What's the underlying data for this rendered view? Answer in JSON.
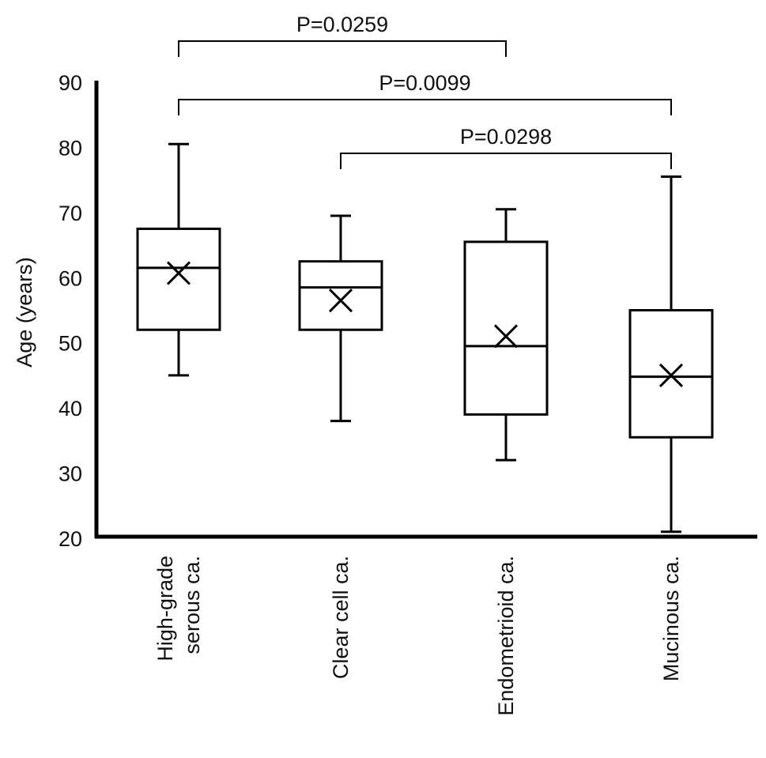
{
  "chart_data": {
    "type": "box",
    "ylabel": "Age (years)",
    "ylim": [
      20,
      90
    ],
    "yticks": [
      "20",
      "30",
      "40",
      "50",
      "60",
      "70",
      "80",
      "90"
    ],
    "grid": false,
    "categories": [
      [
        "High-grade",
        "serous ca."
      ],
      [
        "Clear cell ca."
      ],
      [
        "Endometrioid ca."
      ],
      [
        "Mucinous ca."
      ]
    ],
    "boxes": [
      {
        "min": 45,
        "q1": 52,
        "median": 61.5,
        "q3": 67.5,
        "max": 80.5,
        "mean": 60.7
      },
      {
        "min": 38,
        "q1": 52,
        "median": 58.5,
        "q3": 62.5,
        "max": 69.5,
        "mean": 56.5
      },
      {
        "min": 32,
        "q1": 39,
        "median": 49.5,
        "q3": 65.5,
        "max": 70.5,
        "mean": 51
      },
      {
        "min": 21,
        "q1": 35.5,
        "median": 44.8,
        "q3": 55,
        "max": 75.5,
        "mean": 45
      }
    ],
    "comparisons": [
      {
        "from": 0,
        "to": 2,
        "label": "P=0.0259"
      },
      {
        "from": 0,
        "to": 3,
        "label": "P=0.0099"
      },
      {
        "from": 1,
        "to": 3,
        "label": "P=0.0298"
      }
    ]
  }
}
